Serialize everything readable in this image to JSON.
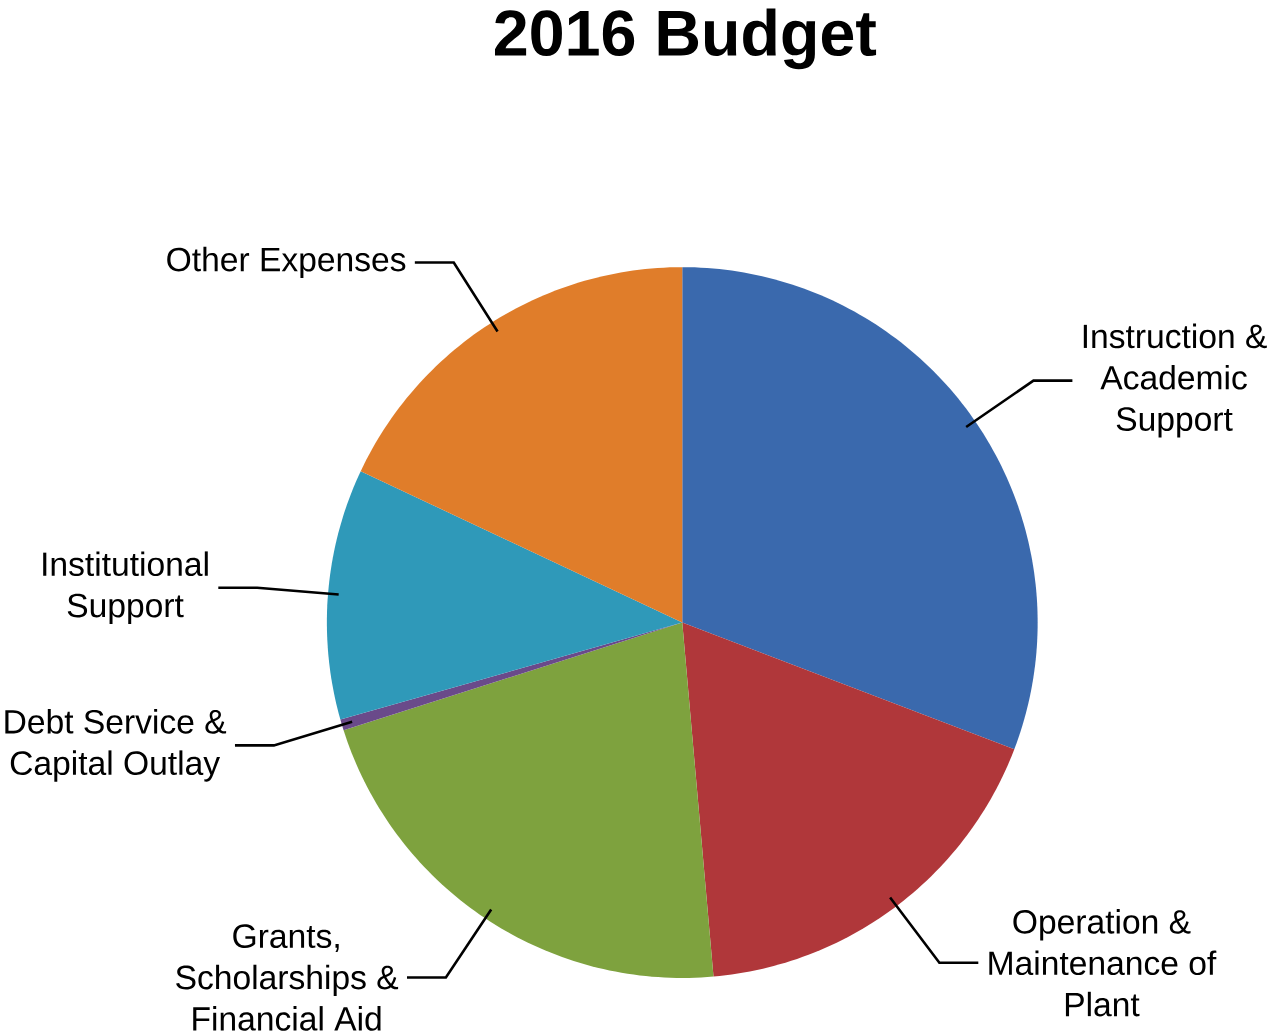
{
  "chart_data": {
    "type": "pie",
    "title": "2016 Budget",
    "categories": [
      "Instruction & Academic Support",
      "Operation & Maintenance of Plant",
      "Grants, Scholarships & Financial Aid",
      "Debt Service & Capital Outlay",
      "Institutional Support",
      "Other Expenses"
    ],
    "values": [
      30.8,
      17.8,
      21.5,
      0.5,
      11.4,
      18.0
    ],
    "colors": [
      "#3a69ad",
      "#b0373a",
      "#7ea23e",
      "#6a4a8a",
      "#2f99b9",
      "#e07d2a"
    ]
  }
}
